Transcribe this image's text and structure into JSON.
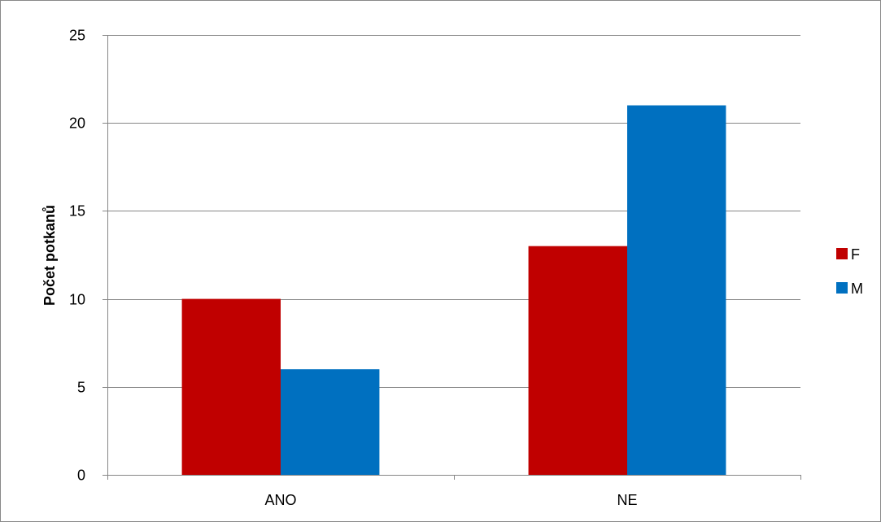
{
  "chart_data": {
    "type": "bar",
    "categories": [
      "ANO",
      "NE"
    ],
    "series": [
      {
        "name": "F",
        "values": [
          10,
          13
        ],
        "color": "#C00000"
      },
      {
        "name": "M",
        "values": [
          6,
          21
        ],
        "color": "#0070C0"
      }
    ],
    "xlabel": "",
    "ylabel": "Počet potkanů",
    "ylim": [
      0,
      25
    ],
    "yticks": [
      0,
      5,
      10,
      15,
      20,
      25
    ],
    "grid": true,
    "legend_position": "right"
  }
}
